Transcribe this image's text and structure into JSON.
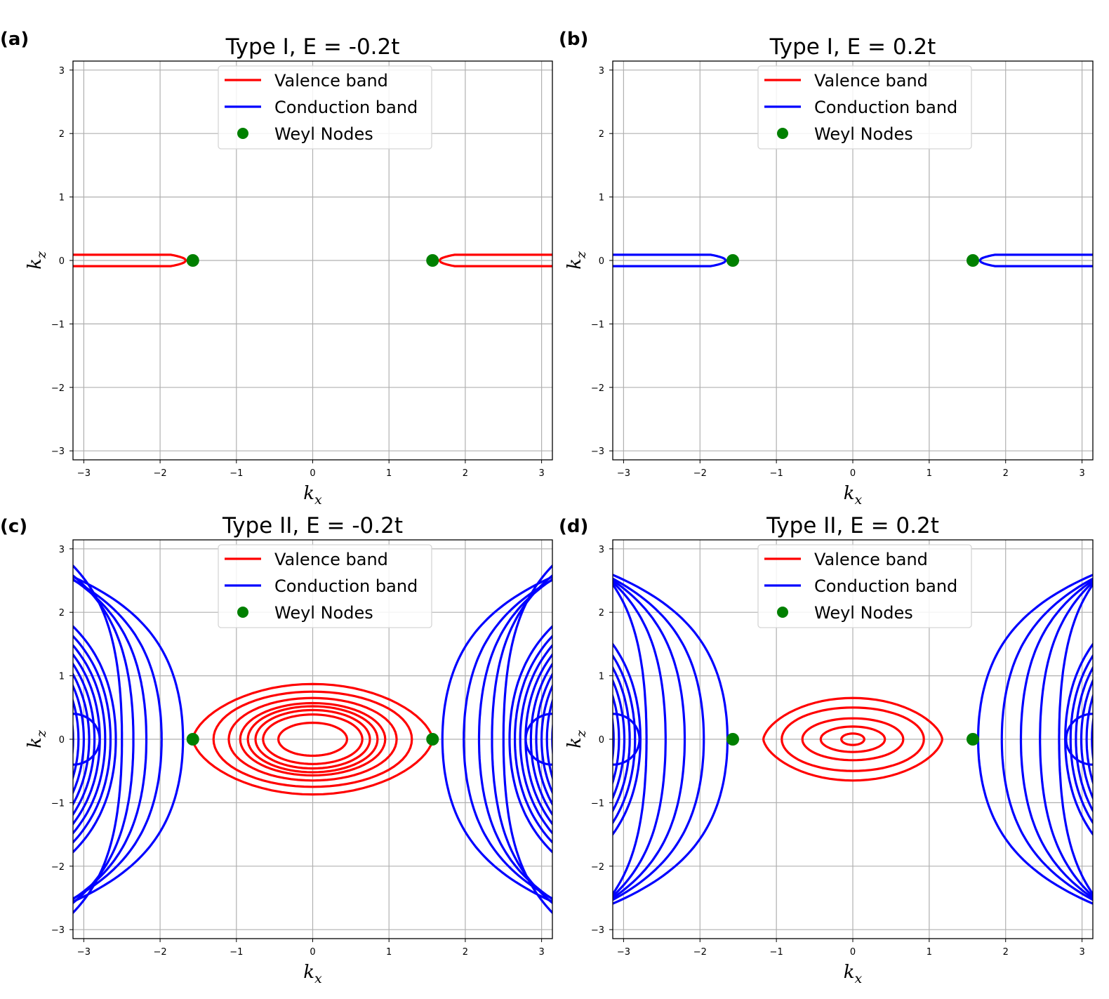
{
  "chart_data": [
    {
      "panel": "(a)",
      "type": "line",
      "title": "Type I, E = -0.2t",
      "xlabel": "k_x",
      "ylabel": "k_z",
      "xlim": [
        -3.14159,
        3.14159
      ],
      "ylim": [
        -3.14159,
        3.14159
      ],
      "xticks": [
        "−3",
        "−2",
        "−1",
        "0",
        "1",
        "2",
        "3"
      ],
      "yticks": [
        "−3",
        "−2",
        "−1",
        "0",
        "1",
        "2",
        "3"
      ],
      "grid": true,
      "legend": {
        "location": "upper center",
        "entries": [
          "Valence band",
          "Conduction band",
          "Weyl Nodes"
        ]
      },
      "colors": {
        "valence": "#ff0000",
        "conduction": "#0000ff",
        "nodes": "#008000"
      },
      "model": "type1",
      "energy": -0.2,
      "drawn_band": "valence",
      "weyl_nodes": [
        [
          -1.5708,
          0
        ],
        [
          1.5708,
          0
        ]
      ]
    },
    {
      "panel": "(b)",
      "type": "line",
      "title": "Type I, E = 0.2t",
      "xlabel": "k_x",
      "ylabel": "k_z",
      "xlim": [
        -3.14159,
        3.14159
      ],
      "ylim": [
        -3.14159,
        3.14159
      ],
      "xticks": [
        "−3",
        "−2",
        "−1",
        "0",
        "1",
        "2",
        "3"
      ],
      "yticks": [
        "−3",
        "−2",
        "−1",
        "0",
        "1",
        "2",
        "3"
      ],
      "grid": true,
      "legend": {
        "location": "upper center",
        "entries": [
          "Valence band",
          "Conduction band",
          "Weyl Nodes"
        ]
      },
      "colors": {
        "valence": "#ff0000",
        "conduction": "#0000ff",
        "nodes": "#008000"
      },
      "model": "type1",
      "energy": 0.2,
      "drawn_band": "conduction",
      "weyl_nodes": [
        [
          -1.5708,
          0
        ],
        [
          1.5708,
          0
        ]
      ]
    },
    {
      "panel": "(c)",
      "type": "line",
      "title": "Type II, E = -0.2t",
      "xlabel": "k_x",
      "ylabel": "k_z",
      "xlim": [
        -3.14159,
        3.14159
      ],
      "ylim": [
        -3.14159,
        3.14159
      ],
      "xticks": [
        "−3",
        "−2",
        "−1",
        "0",
        "1",
        "2",
        "3"
      ],
      "yticks": [
        "−3",
        "−2",
        "−1",
        "0",
        "1",
        "2",
        "3"
      ],
      "grid": true,
      "legend": {
        "location": "upper center",
        "entries": [
          "Valence band",
          "Conduction band",
          "Weyl Nodes"
        ]
      },
      "colors": {
        "valence": "#ff0000",
        "conduction": "#0000ff",
        "nodes": "#008000"
      },
      "model": "type2",
      "energy": -0.2,
      "valence_ellipses_kx_kz": [
        [
          1.5708,
          0.87
        ],
        [
          1.3,
          0.75
        ],
        [
          1.1,
          0.65
        ],
        [
          0.95,
          0.57
        ],
        [
          0.85,
          0.52
        ],
        [
          0.75,
          0.46
        ],
        [
          0.65,
          0.39
        ],
        [
          0.45,
          0.26
        ]
      ],
      "conduction_vertex_kx": [
        -2.5,
        -2.35,
        -2.18,
        -1.98,
        -1.7
      ],
      "weyl_nodes": [
        [
          -1.5708,
          0
        ],
        [
          1.5708,
          0
        ]
      ]
    },
    {
      "panel": "(d)",
      "type": "line",
      "title": "Type II, E = 0.2t",
      "xlabel": "k_x",
      "ylabel": "k_z",
      "xlim": [
        -3.14159,
        3.14159
      ],
      "ylim": [
        -3.14159,
        3.14159
      ],
      "xticks": [
        "−3",
        "−2",
        "−1",
        "0",
        "1",
        "2",
        "3"
      ],
      "yticks": [
        "−3",
        "−2",
        "−1",
        "0",
        "1",
        "2",
        "3"
      ],
      "grid": true,
      "legend": {
        "location": "upper center",
        "entries": [
          "Valence band",
          "Conduction band",
          "Weyl Nodes"
        ]
      },
      "colors": {
        "valence": "#ff0000",
        "conduction": "#0000ff",
        "nodes": "#008000"
      },
      "model": "type2",
      "energy": 0.2,
      "valence_ellipses_kx_kz": [
        [
          1.17,
          0.65
        ],
        [
          0.93,
          0.5
        ],
        [
          0.66,
          0.33
        ],
        [
          0.42,
          0.2
        ],
        [
          0.15,
          0.09
        ]
      ],
      "conduction_vertex_kx": [
        -2.7,
        -2.45,
        -2.2,
        -1.95,
        -1.64
      ],
      "weyl_nodes": [
        [
          -1.5708,
          0
        ],
        [
          1.5708,
          0
        ]
      ]
    }
  ]
}
